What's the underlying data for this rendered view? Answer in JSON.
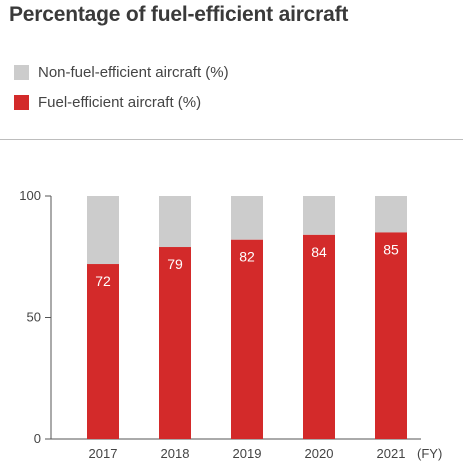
{
  "colors": {
    "fuel_efficient": "#d32a2a",
    "non_fuel_efficient": "#cccccc",
    "axis": "#555555"
  },
  "chart_data": {
    "type": "bar",
    "stacked": true,
    "title": "Percentage of fuel-efficient aircraft",
    "categories": [
      "2017",
      "2018",
      "2019",
      "2020",
      "2021"
    ],
    "x_unit_label": "(FY)",
    "ylim": [
      0,
      100
    ],
    "yticks": [
      0,
      50,
      100
    ],
    "grid": false,
    "legend_position": "top-left",
    "series": [
      {
        "name": "Non-fuel-efficient aircraft (%)",
        "color": "#cccccc",
        "values": [
          28,
          21,
          18,
          16,
          15
        ]
      },
      {
        "name": "Fuel-efficient aircraft (%)",
        "color": "#d32a2a",
        "values": [
          72,
          79,
          82,
          84,
          85
        ],
        "data_labels": [
          "72",
          "79",
          "82",
          "84",
          "85"
        ]
      }
    ]
  }
}
